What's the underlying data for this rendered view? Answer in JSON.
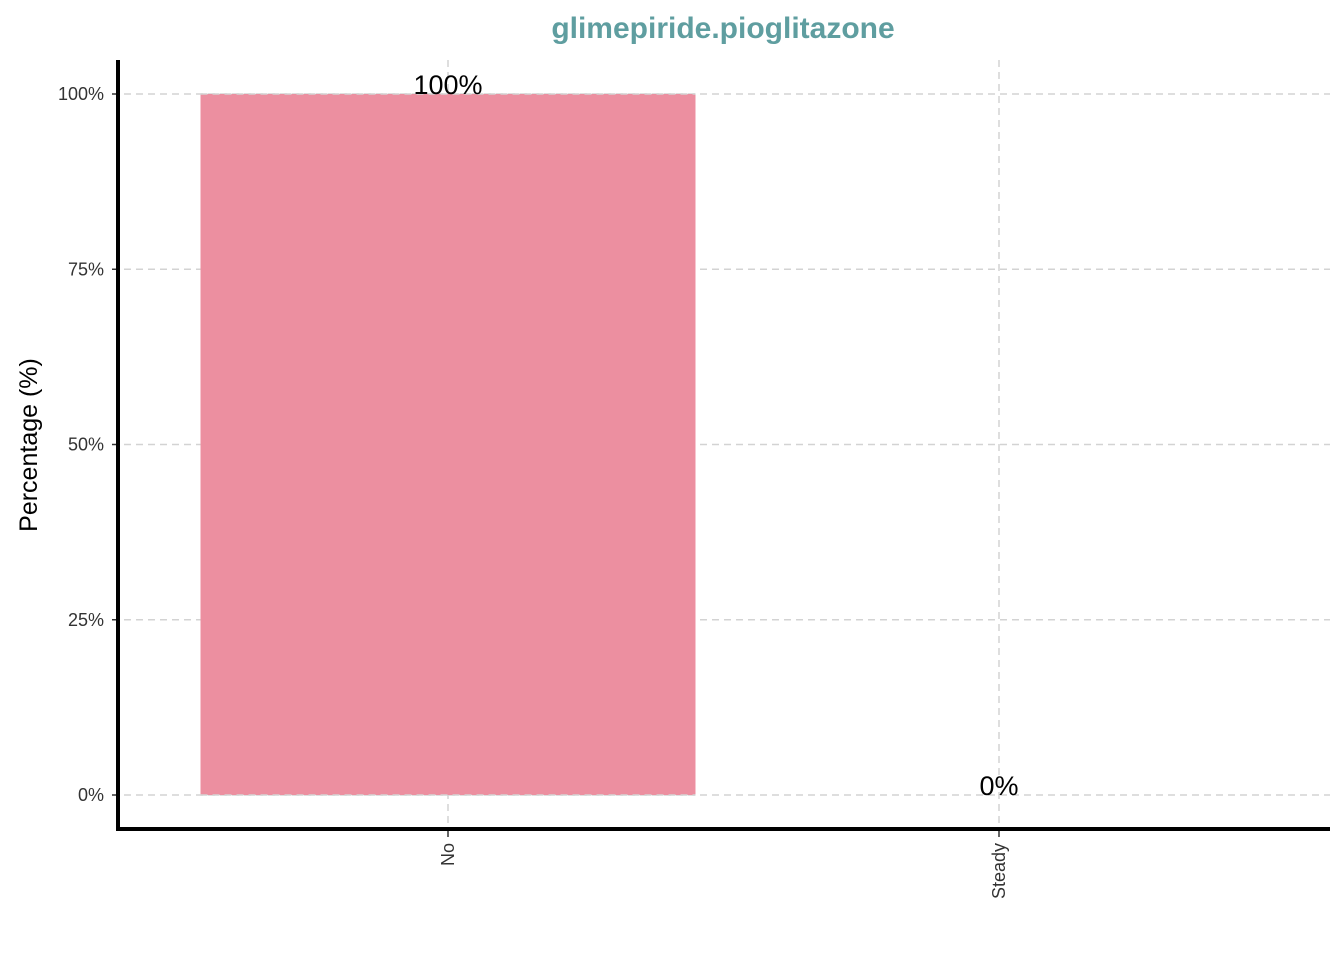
{
  "chart_data": {
    "type": "bar",
    "title": "glimepiride.pioglitazone",
    "ylabel": "Percentage (%)",
    "xlabel": "",
    "categories": [
      "No",
      "Steady"
    ],
    "values": [
      100,
      0
    ],
    "data_labels": [
      "100%",
      "0%"
    ],
    "ylim": [
      0,
      100
    ],
    "yticks": [
      0,
      25,
      50,
      75,
      100
    ],
    "ytick_labels": [
      "0%",
      "25%",
      "50%",
      "75%",
      "100%"
    ],
    "grid": true,
    "legend": "none",
    "colors": {
      "bar": "#EC8FA0",
      "title": "#5F9EA0",
      "grid": "#D3D3D3",
      "axis": "#000000"
    }
  }
}
